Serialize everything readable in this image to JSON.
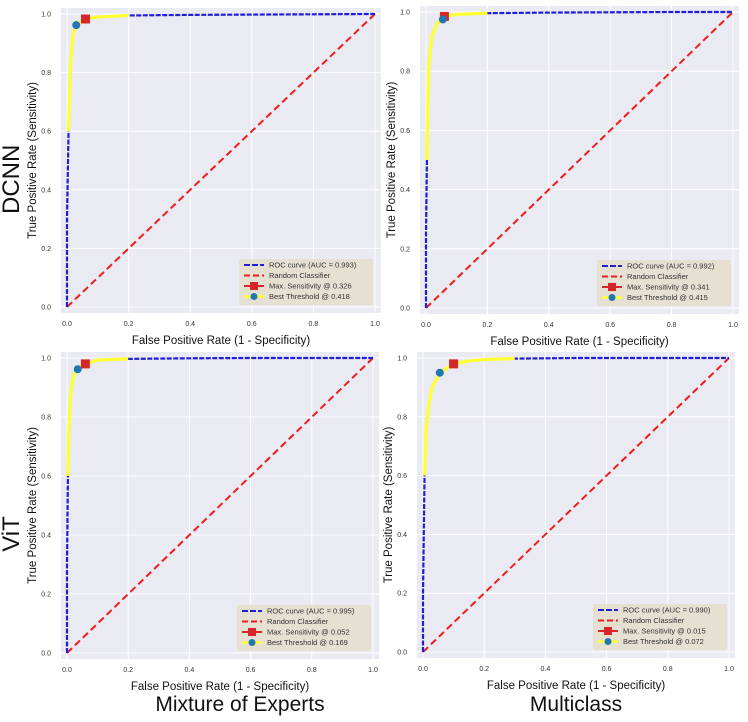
{
  "row_labels": [
    "DCNN",
    "ViT"
  ],
  "column_labels": [
    "Mixture of Experts",
    "Multiclass"
  ],
  "colors": {
    "plot_bg": "#eaeaf2",
    "grid": "#ffffff",
    "roc_line": "#1f1fd6",
    "roc_highlight": "#ffff33",
    "random": "#ee1c1c",
    "max_sens_marker": "#d62728",
    "best_thresh_marker": "#1f77b4",
    "legend_bg": "#e6dfcf"
  },
  "chart_data": [
    {
      "type": "line",
      "xlabel": "False Positive Rate (1 - Specificity)",
      "ylabel": "True Positive Rate (Sensitivity)",
      "xlim": [
        0,
        1
      ],
      "ylim": [
        0,
        1
      ],
      "xticks": [
        "0.0",
        "0.2",
        "0.4",
        "0.6",
        "0.8",
        "1.0"
      ],
      "yticks": [
        "0.0",
        "0.2",
        "0.4",
        "0.6",
        "0.8",
        "1.0"
      ],
      "grid": true,
      "legend_position": "bottom-right",
      "series": [
        {
          "name": "ROC curve (AUC = 0.993)",
          "x": [
            0,
            0.0,
            0.005,
            0.01,
            0.015,
            0.02,
            0.03,
            0.045,
            0.06,
            0.1,
            0.2,
            0.4,
            0.6,
            0.8,
            1.0
          ],
          "y": [
            0,
            0.3,
            0.6,
            0.8,
            0.88,
            0.93,
            0.96,
            0.975,
            0.983,
            0.99,
            0.995,
            0.997,
            0.998,
            0.999,
            1.0
          ]
        },
        {
          "name": "Random Classifier",
          "x": [
            0,
            1
          ],
          "y": [
            0,
            1
          ]
        },
        {
          "name": "Max. Sensitivity @ 0.326",
          "x": [
            0.06
          ],
          "y": [
            0.983
          ]
        },
        {
          "name": "Best Threshold @ 0.418",
          "x": [
            0.03
          ],
          "y": [
            0.962
          ]
        }
      ]
    },
    {
      "type": "line",
      "xlabel": "False Positive Rate (1 - Specificity)",
      "ylabel": "True Positive Rate (Sensitivity)",
      "xlim": [
        0,
        1
      ],
      "ylim": [
        0,
        1
      ],
      "xticks": [
        "0.0",
        "0.2",
        "0.4",
        "0.6",
        "0.8",
        "1.0"
      ],
      "yticks": [
        "0.0",
        "0.2",
        "0.4",
        "0.6",
        "0.8",
        "1.0"
      ],
      "grid": true,
      "legend_position": "bottom-right",
      "series": [
        {
          "name": "ROC curve (AUC = 0.992)",
          "x": [
            0,
            0.0,
            0.003,
            0.006,
            0.01,
            0.02,
            0.035,
            0.05,
            0.06,
            0.1,
            0.2,
            0.4,
            0.6,
            0.8,
            1.0
          ],
          "y": [
            0,
            0.25,
            0.5,
            0.7,
            0.83,
            0.92,
            0.96,
            0.975,
            0.985,
            0.992,
            0.996,
            0.998,
            0.999,
            1.0,
            1.0
          ]
        },
        {
          "name": "Random Classifier",
          "x": [
            0,
            1
          ],
          "y": [
            0,
            1
          ]
        },
        {
          "name": "Max. Sensitivity @ 0.341",
          "x": [
            0.06
          ],
          "y": [
            0.985
          ]
        },
        {
          "name": "Best Threshold @ 0.415",
          "x": [
            0.055
          ],
          "y": [
            0.975
          ]
        }
      ]
    },
    {
      "type": "line",
      "xlabel": "False Positive Rate (1 - Specificity)",
      "ylabel": "True Positive Rate (Sensitivity)",
      "xlim": [
        0,
        1
      ],
      "ylim": [
        0,
        1
      ],
      "xticks": [
        "0.0",
        "0.2",
        "0.4",
        "0.6",
        "0.8",
        "1.0"
      ],
      "yticks": [
        "0.0",
        "0.2",
        "0.4",
        "0.6",
        "0.8",
        "1.0"
      ],
      "grid": true,
      "legend_position": "bottom-right",
      "series": [
        {
          "name": "ROC curve (AUC = 0.995)",
          "x": [
            0,
            0.0,
            0.003,
            0.006,
            0.01,
            0.015,
            0.025,
            0.035,
            0.05,
            0.06,
            0.1,
            0.2,
            0.4,
            0.6,
            0.8,
            1.0
          ],
          "y": [
            0,
            0.3,
            0.6,
            0.75,
            0.85,
            0.91,
            0.95,
            0.965,
            0.975,
            0.98,
            0.993,
            0.997,
            0.999,
            1.0,
            1.0,
            1.0
          ]
        },
        {
          "name": "Random Classifier",
          "x": [
            0,
            1
          ],
          "y": [
            0,
            1
          ]
        },
        {
          "name": "Max. Sensitivity @ 0.052",
          "x": [
            0.06
          ],
          "y": [
            0.98
          ]
        },
        {
          "name": "Best Threshold @ 0.169",
          "x": [
            0.035
          ],
          "y": [
            0.962
          ]
        }
      ]
    },
    {
      "type": "line",
      "xlabel": "False Positive Rate (1 - Specificity)",
      "ylabel": "True Positive Rate (Sensitivity)",
      "xlim": [
        0,
        1
      ],
      "ylim": [
        0,
        1
      ],
      "xticks": [
        "0.0",
        "0.2",
        "0.4",
        "0.6",
        "0.8",
        "1.0"
      ],
      "yticks": [
        "0.0",
        "0.2",
        "0.4",
        "0.6",
        "0.8",
        "1.0"
      ],
      "grid": true,
      "legend_position": "bottom-right",
      "series": [
        {
          "name": "ROC curve (AUC = 0.990)",
          "x": [
            0,
            0.0,
            0.005,
            0.01,
            0.02,
            0.03,
            0.05,
            0.07,
            0.1,
            0.15,
            0.2,
            0.3,
            0.5,
            0.7,
            1.0
          ],
          "y": [
            0,
            0.2,
            0.6,
            0.75,
            0.85,
            0.9,
            0.94,
            0.96,
            0.98,
            0.99,
            0.995,
            0.998,
            1.0,
            1.0,
            1.0
          ]
        },
        {
          "name": "Random Classifier",
          "x": [
            0,
            1
          ],
          "y": [
            0,
            1
          ]
        },
        {
          "name": "Max. Sensitivity @ 0.015",
          "x": [
            0.1
          ],
          "y": [
            0.98
          ]
        },
        {
          "name": "Best Threshold @ 0.072",
          "x": [
            0.055
          ],
          "y": [
            0.95
          ]
        }
      ]
    }
  ]
}
